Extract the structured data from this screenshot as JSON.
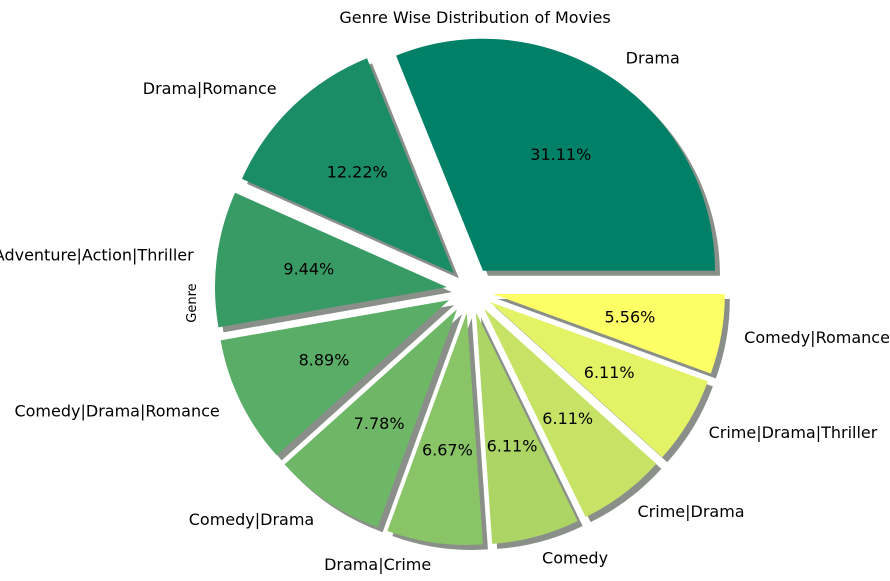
{
  "chart_data": {
    "type": "pie",
    "title": "Genre Wise Distribution of Movies",
    "ylabel": "Genre",
    "shadow": true,
    "exploded": true,
    "start_angle_deg": 0,
    "direction": "counterclockwise",
    "categories": [
      "Drama",
      "Drama|Romance",
      "Adventure|Action|Thriller",
      "Comedy|Drama|Romance",
      "Comedy|Drama",
      "Drama|Crime",
      "Comedy",
      "Crime|Drama",
      "Crime|Drama|Thriller",
      "Comedy|Romance"
    ],
    "values": [
      31.11,
      12.22,
      9.44,
      8.89,
      7.78,
      6.67,
      6.11,
      6.11,
      6.11,
      5.56
    ],
    "value_labels": [
      "31.11%",
      "12.22%",
      "9.44%",
      "8.89%",
      "7.78%",
      "6.67%",
      "6.11%",
      "6.11%",
      "6.11%",
      "5.56%"
    ],
    "colors": [
      "#008066",
      "#1b8d66",
      "#389b66",
      "#5aad66",
      "#6eb766",
      "#89c466",
      "#acd566",
      "#c7e366",
      "#e4f266",
      "#ffff66"
    ],
    "shadow_color": "#8a9089"
  }
}
